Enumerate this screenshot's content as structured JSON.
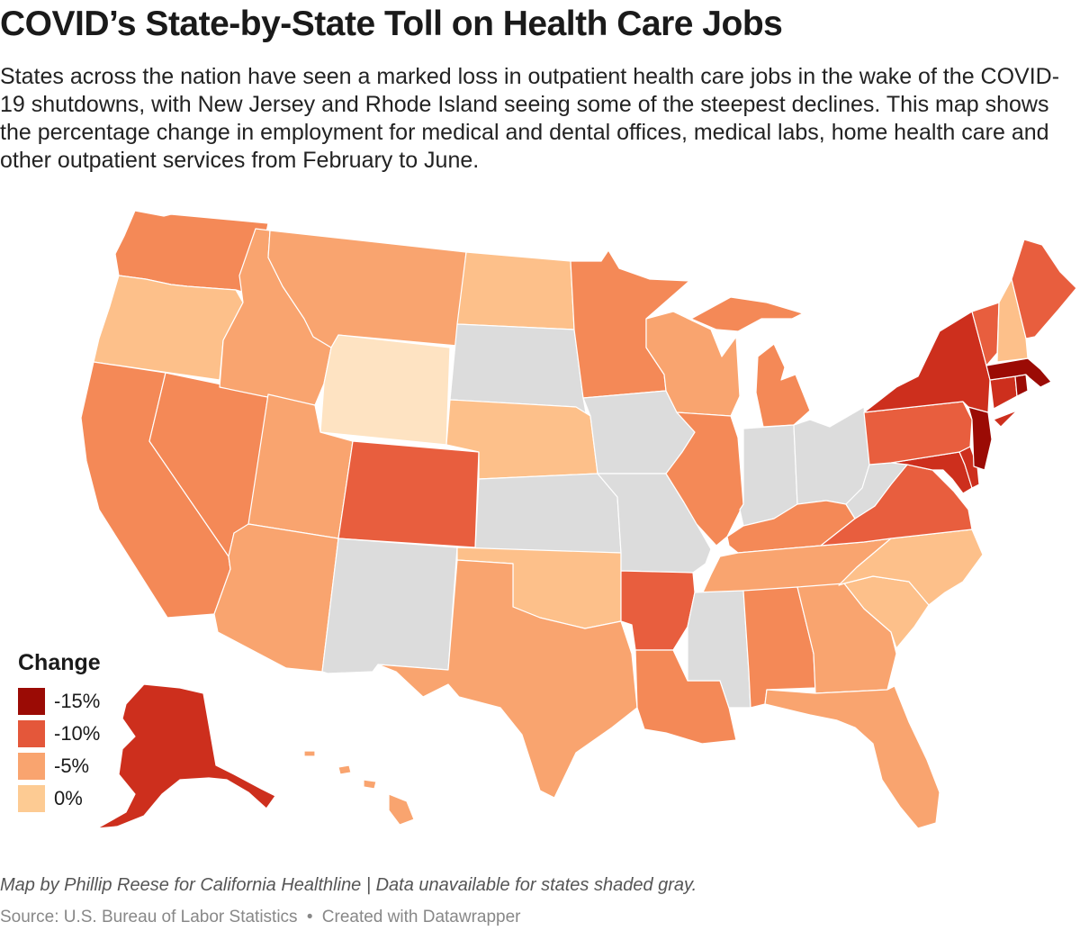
{
  "title": "COVID’s State-by-State Toll on Health Care Jobs",
  "description": "States across the nation have seen a marked loss in outpatient health care jobs in the wake of the COVID-19 shutdowns, with New Jersey and Rhode Island seeing some of the steepest declines. This map shows the percentage change in employment for medical and dental offices, medical labs, home health care and other outpatient services from February to June.",
  "legend": {
    "title": "Change",
    "items": [
      {
        "label": "-15%",
        "color": "#9b0b05"
      },
      {
        "label": "-10%",
        "color": "#e4573a"
      },
      {
        "label": "-5%",
        "color": "#f9a46f"
      },
      {
        "label": "0%",
        "color": "#fdcb93"
      }
    ]
  },
  "colors": {
    "very_dark": "#9b0b05",
    "dark": "#cd2f1d",
    "medium": "#e85e3e",
    "medium_light": "#f48957",
    "light": "#f9a46f",
    "lighter": "#fdc08a",
    "lightest": "#fee3c2",
    "no_data": "#dcdcdc"
  },
  "states": [
    {
      "name": "Washington",
      "shade": "medium_light"
    },
    {
      "name": "Oregon",
      "shade": "lighter"
    },
    {
      "name": "California",
      "shade": "medium_light"
    },
    {
      "name": "Nevada",
      "shade": "medium_light"
    },
    {
      "name": "Idaho",
      "shade": "light"
    },
    {
      "name": "Montana",
      "shade": "light"
    },
    {
      "name": "Wyoming",
      "shade": "lightest"
    },
    {
      "name": "Utah",
      "shade": "light"
    },
    {
      "name": "Arizona",
      "shade": "light"
    },
    {
      "name": "Colorado",
      "shade": "medium"
    },
    {
      "name": "New Mexico",
      "shade": "no_data"
    },
    {
      "name": "North Dakota",
      "shade": "lighter"
    },
    {
      "name": "South Dakota",
      "shade": "no_data"
    },
    {
      "name": "Nebraska",
      "shade": "lighter"
    },
    {
      "name": "Kansas",
      "shade": "no_data"
    },
    {
      "name": "Oklahoma",
      "shade": "lighter"
    },
    {
      "name": "Texas",
      "shade": "light"
    },
    {
      "name": "Minnesota",
      "shade": "medium_light"
    },
    {
      "name": "Iowa",
      "shade": "no_data"
    },
    {
      "name": "Missouri",
      "shade": "no_data"
    },
    {
      "name": "Arkansas",
      "shade": "medium"
    },
    {
      "name": "Louisiana",
      "shade": "medium_light"
    },
    {
      "name": "Wisconsin",
      "shade": "light"
    },
    {
      "name": "Illinois",
      "shade": "medium_light"
    },
    {
      "name": "Michigan",
      "shade": "medium_light"
    },
    {
      "name": "Indiana",
      "shade": "no_data"
    },
    {
      "name": "Ohio",
      "shade": "no_data"
    },
    {
      "name": "Kentucky",
      "shade": "medium_light"
    },
    {
      "name": "Tennessee",
      "shade": "light"
    },
    {
      "name": "Mississippi",
      "shade": "no_data"
    },
    {
      "name": "Alabama",
      "shade": "medium_light"
    },
    {
      "name": "Georgia",
      "shade": "light"
    },
    {
      "name": "Florida",
      "shade": "light"
    },
    {
      "name": "South Carolina",
      "shade": "lighter"
    },
    {
      "name": "North Carolina",
      "shade": "lighter"
    },
    {
      "name": "Virginia",
      "shade": "medium"
    },
    {
      "name": "West Virginia",
      "shade": "no_data"
    },
    {
      "name": "Maryland",
      "shade": "dark"
    },
    {
      "name": "Delaware",
      "shade": "dark"
    },
    {
      "name": "Pennsylvania",
      "shade": "medium"
    },
    {
      "name": "New Jersey",
      "shade": "very_dark"
    },
    {
      "name": "New York",
      "shade": "dark"
    },
    {
      "name": "Connecticut",
      "shade": "dark"
    },
    {
      "name": "Rhode Island",
      "shade": "very_dark"
    },
    {
      "name": "Massachusetts",
      "shade": "very_dark"
    },
    {
      "name": "Vermont",
      "shade": "medium"
    },
    {
      "name": "New Hampshire",
      "shade": "lighter"
    },
    {
      "name": "Maine",
      "shade": "medium"
    },
    {
      "name": "Alaska",
      "shade": "dark"
    },
    {
      "name": "Hawaii",
      "shade": "light"
    }
  ],
  "notes": "Map by Phillip Reese for California Healthline | Data unavailable for states shaded gray.",
  "source": {
    "text": "Source: U.S. Bureau of Labor Statistics",
    "separator": "•",
    "credit": "Created with Datawrapper"
  }
}
